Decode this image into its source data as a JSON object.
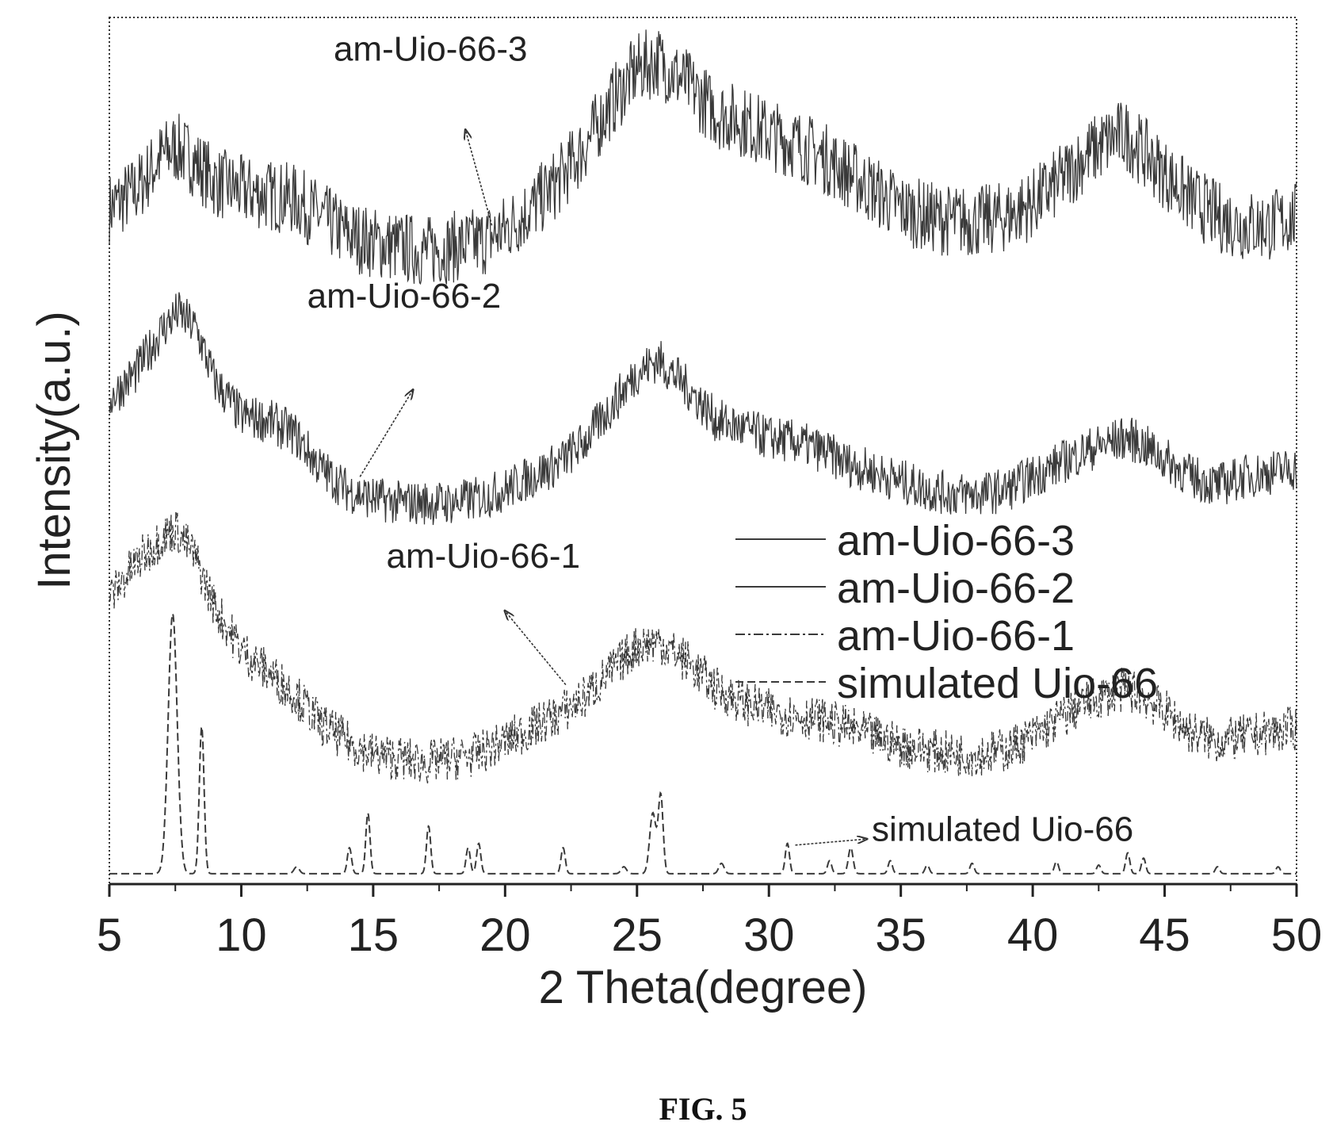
{
  "figure": {
    "caption": "FIG. 5"
  },
  "chart_data": {
    "type": "line",
    "xlabel": "2 Theta(degree)",
    "ylabel": "Intensity(a.u.)",
    "xlim": [
      5,
      50
    ],
    "xticks": [
      5,
      10,
      15,
      20,
      25,
      30,
      35,
      40,
      45,
      50
    ],
    "xtick_labels": [
      "5",
      "10",
      "15",
      "20",
      "25",
      "30",
      "35",
      "40",
      "45",
      "50"
    ],
    "y_scale": "arbitrary, series vertically offset",
    "ylim": [
      0,
      100
    ],
    "legend_position": "right, middle",
    "grid": false,
    "colors": {
      "line": "#3a3a3a",
      "axis": "#222222"
    },
    "series": [
      {
        "name": "am-Uio-66-3",
        "label": "am-Uio-66-3",
        "dash": "solid",
        "noise": 4.2,
        "x": [
          5,
          6,
          7,
          7.5,
          8,
          9,
          10,
          11,
          12,
          13,
          14,
          15,
          16,
          17,
          18,
          19,
          20,
          21,
          22,
          23,
          24,
          25,
          25.8,
          27,
          28,
          29,
          30,
          31,
          32,
          33,
          34,
          35,
          36,
          37,
          38,
          39,
          40,
          41,
          42,
          43,
          43.5,
          44,
          45,
          46,
          47,
          48,
          49,
          50
        ],
        "y": [
          78,
          80,
          84,
          85,
          84,
          81,
          80,
          79.5,
          79,
          77,
          75,
          74,
          73.5,
          73,
          73.5,
          74,
          75.5,
          78,
          81,
          85,
          90,
          94,
          95,
          92,
          89,
          88,
          86.5,
          85.5,
          84,
          82,
          80,
          78,
          77,
          76.5,
          76.5,
          77,
          78.5,
          81,
          84,
          86,
          86.5,
          85,
          82,
          79,
          77,
          76,
          76,
          77
        ]
      },
      {
        "name": "am-Uio-66-2",
        "label": "am-Uio-66-2",
        "dash": "solid",
        "noise": 2.6,
        "x": [
          5,
          6,
          7,
          7.6,
          8.3,
          9,
          10,
          11,
          12,
          13,
          14,
          15,
          16,
          17,
          18,
          19,
          20,
          21,
          22,
          23,
          24,
          25,
          25.8,
          27,
          28,
          29,
          30,
          31,
          32,
          33,
          34,
          35,
          36,
          37,
          38,
          39,
          40,
          41,
          42,
          43,
          43.5,
          44,
          45,
          46,
          47,
          48,
          49,
          50
        ],
        "y": [
          56,
          59,
          64,
          66,
          64,
          58,
          54,
          53.5,
          52,
          48,
          45.5,
          44.5,
          44,
          44,
          44,
          44.5,
          45.5,
          47,
          48.5,
          51,
          55,
          59,
          60.5,
          57,
          53.5,
          52.5,
          51.5,
          51,
          50,
          48.5,
          47.5,
          46.5,
          45.5,
          45,
          45,
          45.5,
          47,
          48.5,
          50,
          51,
          51.5,
          51,
          49,
          47,
          46,
          47,
          47.5,
          48
        ]
      },
      {
        "name": "am-Uio-66-1",
        "label": "am-Uio-66-1",
        "dash": "dashdot",
        "noise": 2.6,
        "x": [
          5,
          6,
          7,
          7.5,
          8.2,
          9,
          10,
          11,
          12,
          13,
          14,
          15,
          16,
          17,
          18,
          19,
          20,
          21,
          22,
          23,
          24,
          25,
          25.8,
          27,
          28,
          29,
          30,
          31,
          32,
          33,
          34,
          35,
          36,
          37,
          38,
          39,
          40,
          41,
          42,
          43,
          43.5,
          44,
          45,
          46,
          47,
          48,
          49,
          50
        ],
        "y": [
          33,
          37,
          40,
          41,
          38,
          32,
          27,
          24.5,
          22,
          18.5,
          16.5,
          15,
          14.5,
          14,
          14.5,
          15,
          16.5,
          18,
          19.5,
          21.5,
          24.5,
          27.5,
          28,
          25.5,
          22.5,
          21,
          20,
          19.5,
          19,
          18,
          17,
          16,
          15.5,
          15,
          15,
          15.5,
          17,
          19,
          21,
          22,
          22.5,
          22,
          20,
          17.5,
          16.5,
          17,
          17.5,
          18
        ]
      },
      {
        "name": "simulated Uio-66",
        "label": "simulated Uio-66",
        "dash": "dashed",
        "noise": 0,
        "baseline": 1.2,
        "peaks": [
          {
            "x": 7.4,
            "h": 30,
            "w": 0.17
          },
          {
            "x": 8.5,
            "h": 17,
            "w": 0.09
          },
          {
            "x": 12.1,
            "h": 0.8,
            "w": 0.1
          },
          {
            "x": 14.1,
            "h": 3,
            "w": 0.08
          },
          {
            "x": 14.8,
            "h": 7,
            "w": 0.08
          },
          {
            "x": 17.1,
            "h": 5.5,
            "w": 0.08
          },
          {
            "x": 18.6,
            "h": 3,
            "w": 0.08
          },
          {
            "x": 19.0,
            "h": 3.5,
            "w": 0.08
          },
          {
            "x": 22.2,
            "h": 3,
            "w": 0.08
          },
          {
            "x": 24.5,
            "h": 0.8,
            "w": 0.1
          },
          {
            "x": 25.6,
            "h": 7,
            "w": 0.12
          },
          {
            "x": 25.9,
            "h": 9,
            "w": 0.09
          },
          {
            "x": 28.2,
            "h": 1.2,
            "w": 0.1
          },
          {
            "x": 30.7,
            "h": 3.5,
            "w": 0.08
          },
          {
            "x": 32.3,
            "h": 1.5,
            "w": 0.08
          },
          {
            "x": 33.1,
            "h": 3,
            "w": 0.09
          },
          {
            "x": 34.6,
            "h": 1.5,
            "w": 0.08
          },
          {
            "x": 36.0,
            "h": 1,
            "w": 0.08
          },
          {
            "x": 37.7,
            "h": 1.2,
            "w": 0.08
          },
          {
            "x": 40.9,
            "h": 1.4,
            "w": 0.08
          },
          {
            "x": 42.5,
            "h": 1,
            "w": 0.08
          },
          {
            "x": 43.6,
            "h": 2.4,
            "w": 0.08
          },
          {
            "x": 44.2,
            "h": 1.8,
            "w": 0.08
          },
          {
            "x": 47.0,
            "h": 0.8,
            "w": 0.08
          },
          {
            "x": 49.3,
            "h": 0.8,
            "w": 0.08
          }
        ]
      }
    ],
    "annotations": [
      {
        "text": "am-Uio-66-3",
        "series": "am-Uio-66-3",
        "text_x": 13.5,
        "text_y": 95,
        "arrow_from": [
          19.5,
          76
        ],
        "arrow_to": [
          18.5,
          87
        ]
      },
      {
        "text": "am-Uio-66-2",
        "series": "am-Uio-66-2",
        "text_x": 12.5,
        "text_y": 66.5,
        "arrow_from": [
          14.5,
          47
        ],
        "arrow_to": [
          16.5,
          57
        ]
      },
      {
        "text": "am-Uio-66-1",
        "series": "am-Uio-66-1",
        "text_x": 15.5,
        "text_y": 36.5,
        "arrow_from": [
          22.3,
          23
        ],
        "arrow_to": [
          20,
          31.5
        ]
      },
      {
        "text": "simulated Uio-66",
        "series": "simulated Uio-66",
        "text_x": 33.9,
        "text_y": 5,
        "arrow_from": [
          31,
          4.5
        ],
        "arrow_to": [
          33.7,
          5.2
        ]
      }
    ],
    "legend": [
      "am-Uio-66-3",
      "am-Uio-66-2",
      "am-Uio-66-1",
      "simulated Uio-66"
    ]
  }
}
